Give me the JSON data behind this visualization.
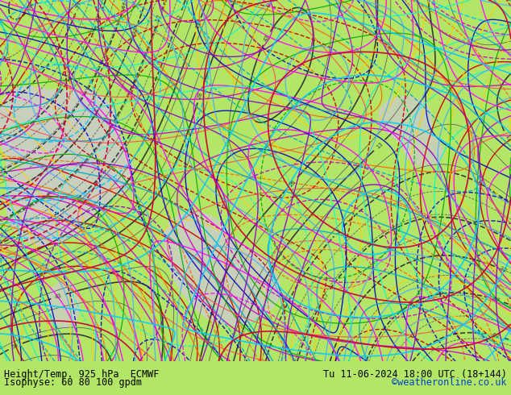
{
  "title_left_line1": "Height/Temp. 925 hPa  ECMWF",
  "title_left_line2": "Isophyse: 60 80 100 gpdm",
  "title_right_line1": "Tu 11-06-2024 18:00 UTC (18+144)",
  "title_right_line2": "©weatheronline.co.uk",
  "title_right_line2_color": "#0044cc",
  "bg_color": "#b3e666",
  "text_color": "#000000",
  "font_size": 8.5,
  "fig_width": 6.34,
  "fig_height": 4.9,
  "dpi": 100,
  "bottom_bar_color": "#c8f060"
}
